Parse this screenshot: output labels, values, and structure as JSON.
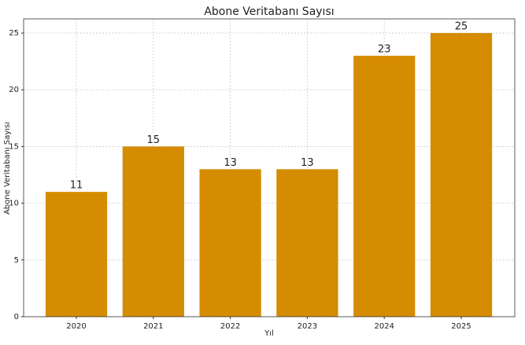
{
  "chart_data": {
    "type": "bar",
    "title": "Abone Veritabanı Sayısı",
    "x_label": "Yıl",
    "y_label": "Abone Veritabanı Sayısı",
    "categories": [
      "2020",
      "2021",
      "2022",
      "2023",
      "2024",
      "2025"
    ],
    "values": [
      11,
      15,
      13,
      13,
      23,
      25
    ],
    "color": "#d58c00",
    "ylim": [
      0,
      26.25
    ],
    "yticks": [
      0,
      5,
      10,
      15,
      20,
      25
    ],
    "grid": true
  }
}
